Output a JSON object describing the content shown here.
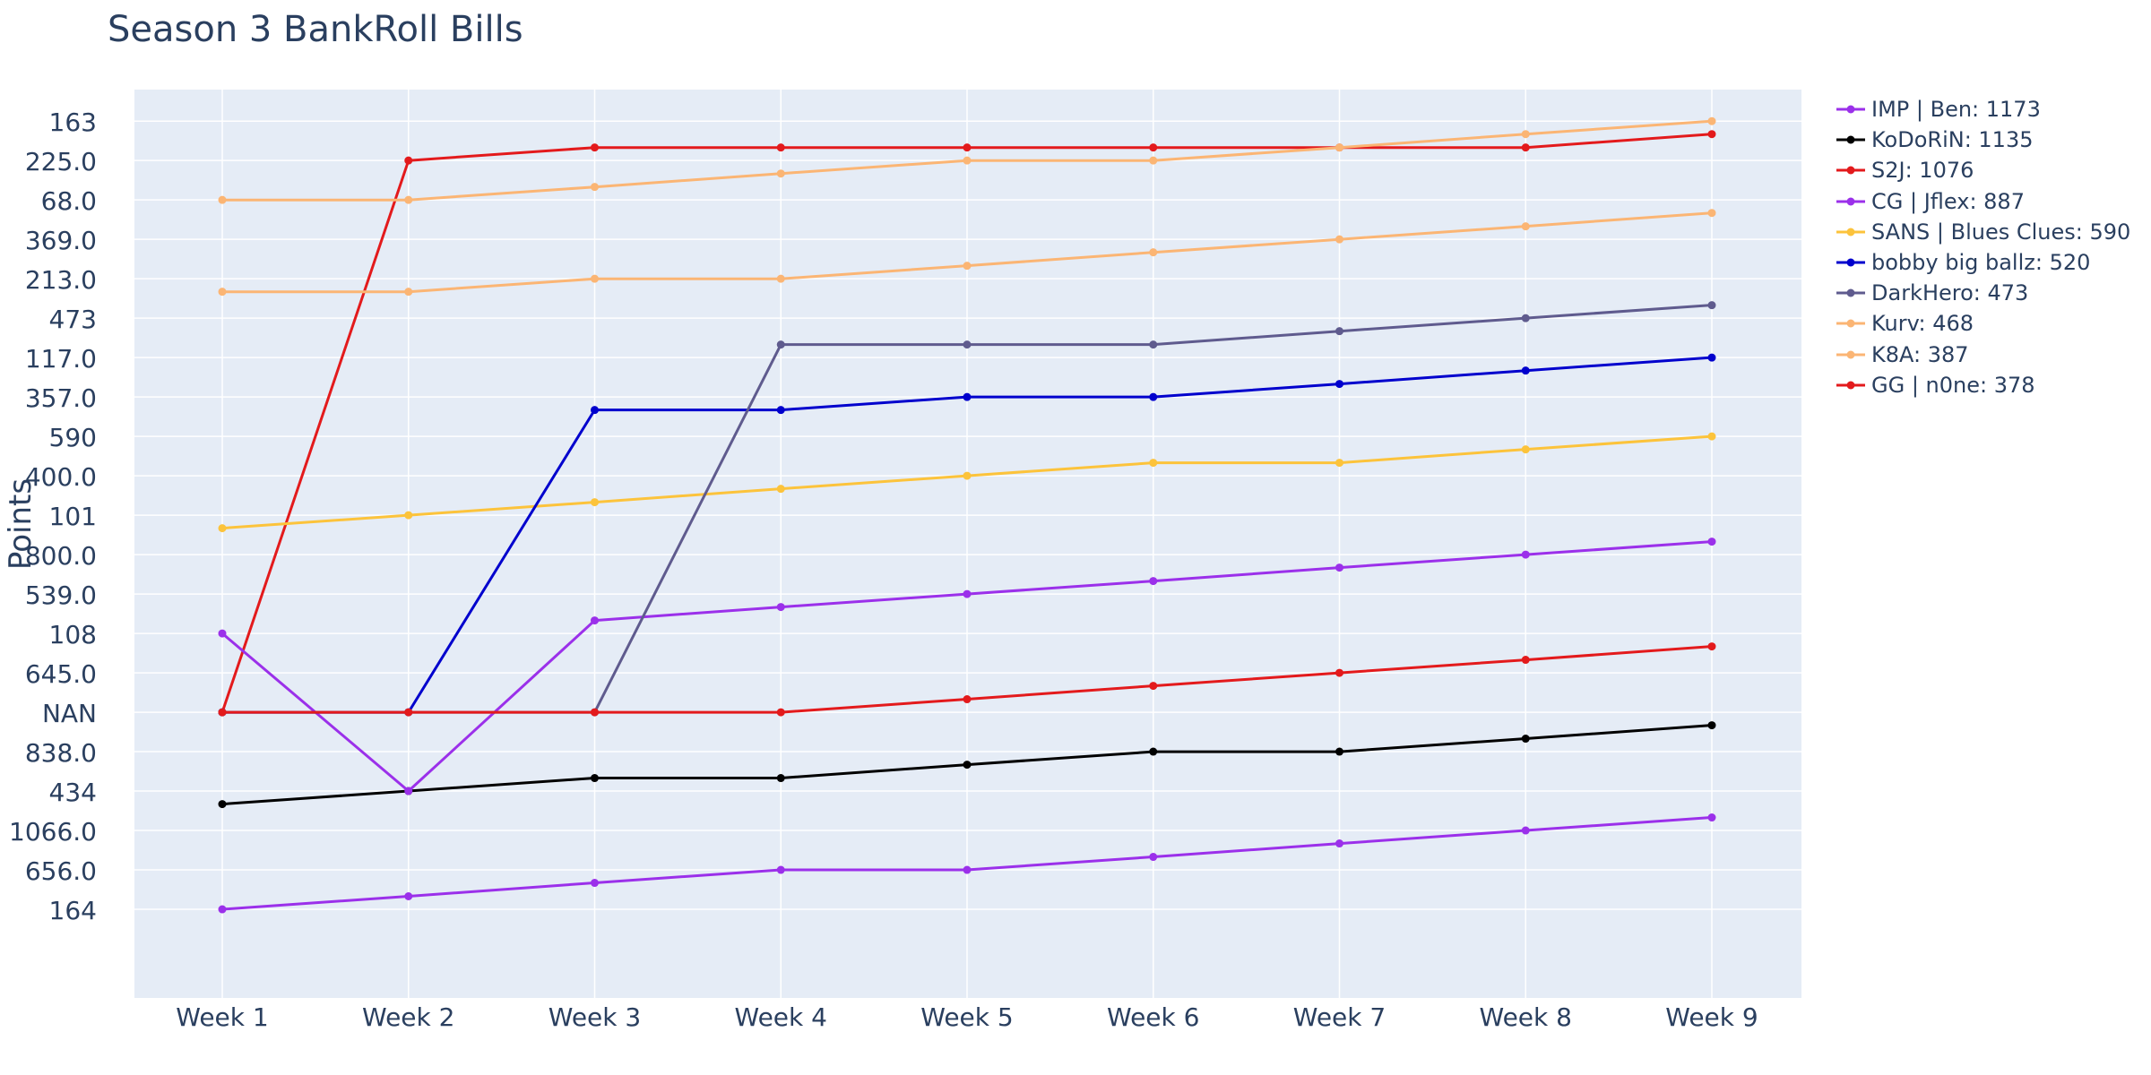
{
  "chart_data": {
    "type": "line",
    "title": "Season 3 BankRoll Bills",
    "xlabel": "",
    "ylabel": "Points",
    "categories": [
      "Week 1",
      "Week 2",
      "Week 3",
      "Week 4",
      "Week 5",
      "Week 6",
      "Week 7",
      "Week 8",
      "Week 9"
    ],
    "y_tick_labels": [
      "164",
      "656.0",
      "1066.0",
      "434",
      "838.0",
      "NAN",
      "645.0",
      "108",
      "539.0",
      "800.0",
      "101",
      "400.0",
      "590",
      "357.0",
      "117.0",
      "473",
      "213.0",
      "369.0",
      "68.0",
      "225.0",
      "163"
    ],
    "y_range": [
      -1.25,
      21.8
    ],
    "grid": true,
    "legend_position": "right",
    "plot_background": "#e5ecf6",
    "series": [
      {
        "name": "IMP | Ben: 1173",
        "color": "#9b30ea",
        "values": [
          1,
          1.33,
          1.67,
          2,
          2,
          2.33,
          2.67,
          3,
          3.33
        ]
      },
      {
        "name": "KoDoRiN: 1135",
        "color": "#000000",
        "values": [
          3.67,
          4,
          4.33,
          4.33,
          4.67,
          5,
          5,
          5.33,
          5.67
        ]
      },
      {
        "name": "S2J: 1076",
        "color": "#e31a1c",
        "values": [
          6,
          20,
          20.33,
          20.33,
          20.33,
          20.33,
          20.33,
          20.33,
          20.67
        ]
      },
      {
        "name": "CG | Jflex: 887",
        "color": "#9b30ea",
        "values": [
          8,
          4,
          8.33,
          8.67,
          9,
          9.33,
          9.67,
          10,
          10.33
        ]
      },
      {
        "name": "SANS | Blues Clues: 590",
        "color": "#fcc33b",
        "values": [
          10.67,
          11,
          11.33,
          11.67,
          12,
          12.33,
          12.33,
          12.67,
          13
        ]
      },
      {
        "name": "bobby big ballz: 520",
        "color": "#0000cd",
        "values": [
          6,
          6,
          13.67,
          13.67,
          14,
          14,
          14.33,
          14.67,
          15
        ]
      },
      {
        "name": "DarkHero: 473",
        "color": "#5f5b8e",
        "values": [
          6,
          6,
          6,
          15.33,
          15.33,
          15.33,
          15.67,
          16,
          16.33
        ]
      },
      {
        "name": "Kurv: 468",
        "color": "#fbb574",
        "values": [
          16.67,
          16.67,
          17,
          17,
          17.33,
          17.67,
          18,
          18.33,
          18.67
        ]
      },
      {
        "name": "K8A: 387",
        "color": "#fbb574",
        "values": [
          19,
          19,
          19.33,
          19.67,
          20,
          20,
          20.33,
          20.67,
          21
        ]
      },
      {
        "name": "GG | n0ne: 378",
        "color": "#e31a1c",
        "values": [
          6,
          6,
          6,
          6,
          6.33,
          6.67,
          7,
          7.33,
          7.67
        ]
      }
    ]
  }
}
